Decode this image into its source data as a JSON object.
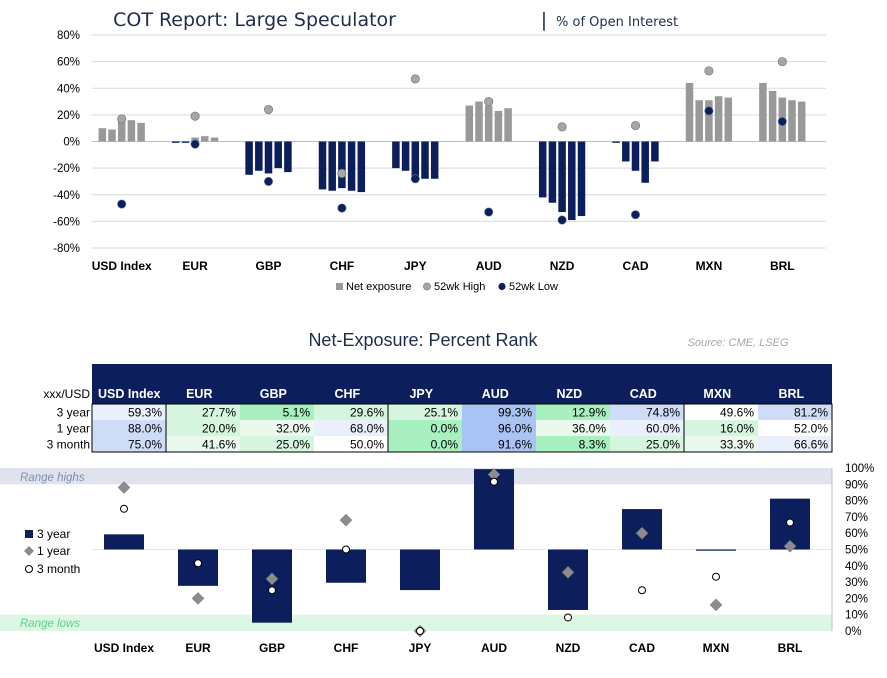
{
  "top_chart": {
    "title_main": "COT Report: Large Speculator",
    "title_sep": "|",
    "title_sub": "% of Open Interest",
    "legend": [
      "Net exposure",
      "52wk High",
      "52wk Low"
    ],
    "colors": {
      "bar": "#999999",
      "bar_neg": "#0c1f5c",
      "high": "#a6a6a6",
      "low": "#0c1f5c",
      "grid": "#d9d9d9"
    }
  },
  "rank_section": {
    "title": "Net-Exposure: Percent Rank",
    "source": "Source: CME, LSEG",
    "table_header": [
      "xxx/USD",
      "USD Index",
      "EUR",
      "GBP",
      "CHF",
      "JPY",
      "AUD",
      "NZD",
      "CAD",
      "MXN",
      "BRL"
    ],
    "table_rows": [
      {
        "label": "3 year",
        "cells": [
          "59.3%",
          "27.7%",
          "5.1%",
          "29.6%",
          "25.1%",
          "99.3%",
          "12.9%",
          "74.8%",
          "49.6%",
          "81.2%"
        ]
      },
      {
        "label": "1 year",
        "cells": [
          "88.0%",
          "20.0%",
          "32.0%",
          "68.0%",
          "0.0%",
          "96.0%",
          "36.0%",
          "60.0%",
          "16.0%",
          "52.0%"
        ]
      },
      {
        "label": "3 month",
        "cells": [
          "75.0%",
          "41.6%",
          "25.0%",
          "50.0%",
          "0.0%",
          "91.6%",
          "8.3%",
          "25.0%",
          "33.3%",
          "66.6%"
        ]
      }
    ],
    "range_highs": "Range highs",
    "range_lows": "Range lows",
    "legend": [
      "3 year",
      "1 year",
      "3 month"
    ]
  },
  "chart_data": [
    {
      "type": "bar",
      "title": "COT Report: Large Speculator | % of Open Interest",
      "categories": [
        "USD Index",
        "EUR",
        "GBP",
        "CHF",
        "JPY",
        "AUD",
        "NZD",
        "CAD",
        "MXN",
        "BRL"
      ],
      "y_ticks": [
        "80%",
        "60%",
        "40%",
        "20%",
        "0%",
        "-20%",
        "-40%",
        "-60%",
        "-80%"
      ],
      "ylim": [
        -80,
        80
      ],
      "net_exposure": [
        [
          10,
          9,
          15,
          16,
          14
        ],
        [
          -1,
          -1,
          3,
          4,
          3
        ],
        [
          -25,
          -22,
          -24,
          -20,
          -23
        ],
        [
          -36,
          -37,
          -35,
          -37,
          -38
        ],
        [
          -20,
          -22,
          -26,
          -28,
          -28
        ],
        [
          27,
          30,
          27,
          23,
          25
        ],
        [
          -42,
          -46,
          -53,
          -59,
          -56
        ],
        [
          -1,
          -15,
          -22,
          -31,
          -15
        ],
        [
          44,
          31,
          31,
          34,
          33
        ],
        [
          44,
          38,
          33,
          31,
          30
        ]
      ],
      "high_52wk": [
        17,
        19,
        24,
        -24,
        47,
        30,
        11,
        12,
        53,
        60
      ],
      "low_52wk": [
        -47,
        -2,
        -30,
        -50,
        -28,
        -53,
        -59,
        -55,
        23,
        15
      ],
      "legend": [
        "Net exposure",
        "52wk High",
        "52wk Low"
      ]
    },
    {
      "type": "bar",
      "title": "Net-Exposure: Percent Rank",
      "categories": [
        "USD Index",
        "EUR",
        "GBP",
        "CHF",
        "JPY",
        "AUD",
        "NZD",
        "CAD",
        "MXN",
        "BRL"
      ],
      "y_ticks": [
        "100%",
        "90%",
        "80%",
        "70%",
        "60%",
        "50%",
        "40%",
        "30%",
        "20%",
        "10%",
        "0%"
      ],
      "ylim": [
        0,
        100
      ],
      "baseline": 50,
      "series": [
        {
          "name": "3 year",
          "values": [
            59.3,
            27.7,
            5.1,
            29.6,
            25.1,
            99.3,
            12.9,
            74.8,
            49.6,
            81.2
          ]
        },
        {
          "name": "1 year",
          "values": [
            88.0,
            20.0,
            32.0,
            68.0,
            0.0,
            96.0,
            36.0,
            60.0,
            16.0,
            52.0
          ]
        },
        {
          "name": "3 month",
          "values": [
            75.0,
            41.6,
            25.0,
            50.0,
            0.0,
            91.6,
            8.3,
            25.0,
            33.3,
            66.6
          ]
        }
      ]
    }
  ]
}
